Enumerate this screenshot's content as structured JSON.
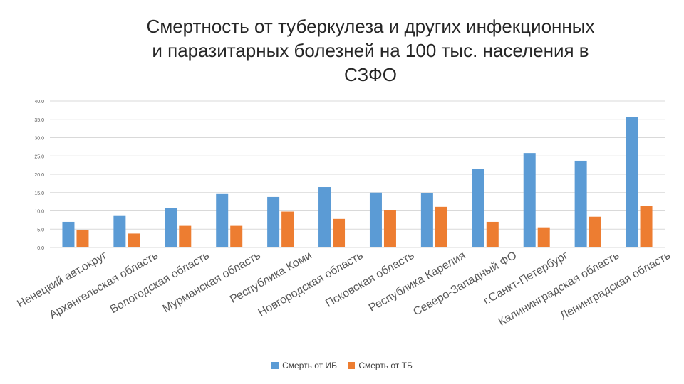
{
  "chart_data": {
    "type": "bar",
    "title": "Смертность от туберкулеза и других инфекционных\nи паразитарных болезней на 100 тыс. населения в\nСЗФО",
    "categories": [
      "Ненецкий авт.округ",
      "Архангельская область",
      "Вологодская область",
      "Мурманская область",
      "Республика Коми",
      "Новгородская область",
      "Псковская область",
      "Республика Карелия",
      "Северо-Западный ФО",
      "г.Санкт-Петербург",
      "Калининградская область",
      "Ленинградская область"
    ],
    "series": [
      {
        "name": "Смерть от ИБ",
        "color": "#5B9BD5",
        "values": [
          7.0,
          8.6,
          10.8,
          14.6,
          13.8,
          16.5,
          15.0,
          14.8,
          21.4,
          25.8,
          23.7,
          35.7
        ]
      },
      {
        "name": "Смерть от ТБ",
        "color": "#ED7D31",
        "values": [
          4.7,
          3.8,
          5.9,
          5.9,
          9.8,
          7.8,
          10.2,
          11.1,
          7.0,
          5.5,
          8.4,
          11.4
        ]
      }
    ],
    "yticks": [
      "0.0",
      "5.0",
      "10.0",
      "15.0",
      "20.0",
      "25.0",
      "30.0",
      "35.0",
      "40.0"
    ],
    "ylim": [
      0,
      40
    ],
    "grid": true,
    "legend_position": "bottom"
  }
}
